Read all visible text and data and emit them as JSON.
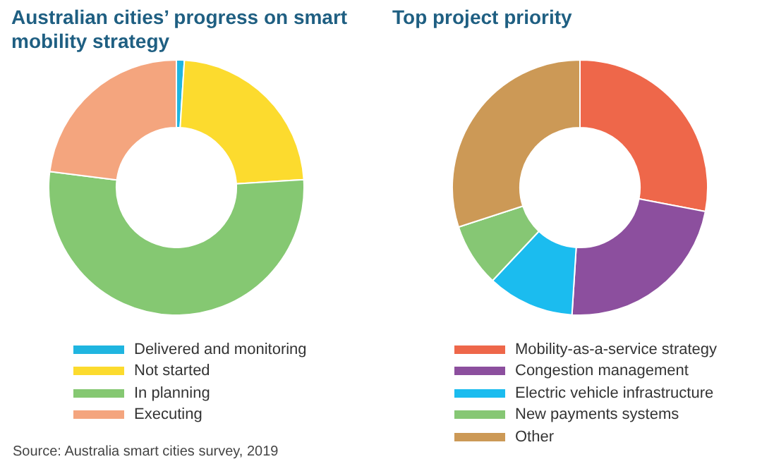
{
  "chart_data": [
    {
      "type": "donut",
      "title": "Australian cities’ progress on smart mobility strategy",
      "categories": [
        "Delivered and monitoring",
        "Not started",
        "In planning",
        "Executing"
      ],
      "values": [
        1,
        23,
        53,
        23
      ],
      "colors": [
        "#1fb5e0",
        "#fcdb2e",
        "#85c872",
        "#f4a57e"
      ],
      "legend": "bottom",
      "annotations": [
        "Source: Australia smart cities survey, 2019"
      ]
    },
    {
      "type": "donut",
      "title": "Top project priority",
      "categories": [
        "Mobility-as-a-service strategy",
        "Congestion management",
        "Electric vehicle infrastructure",
        "New payments systems",
        "Other"
      ],
      "values": [
        28,
        23,
        11,
        8,
        30
      ],
      "colors": [
        "#ee674a",
        "#8c4f9e",
        "#1bbcef",
        "#86c774",
        "#cc9956"
      ],
      "legend": "bottom"
    }
  ]
}
